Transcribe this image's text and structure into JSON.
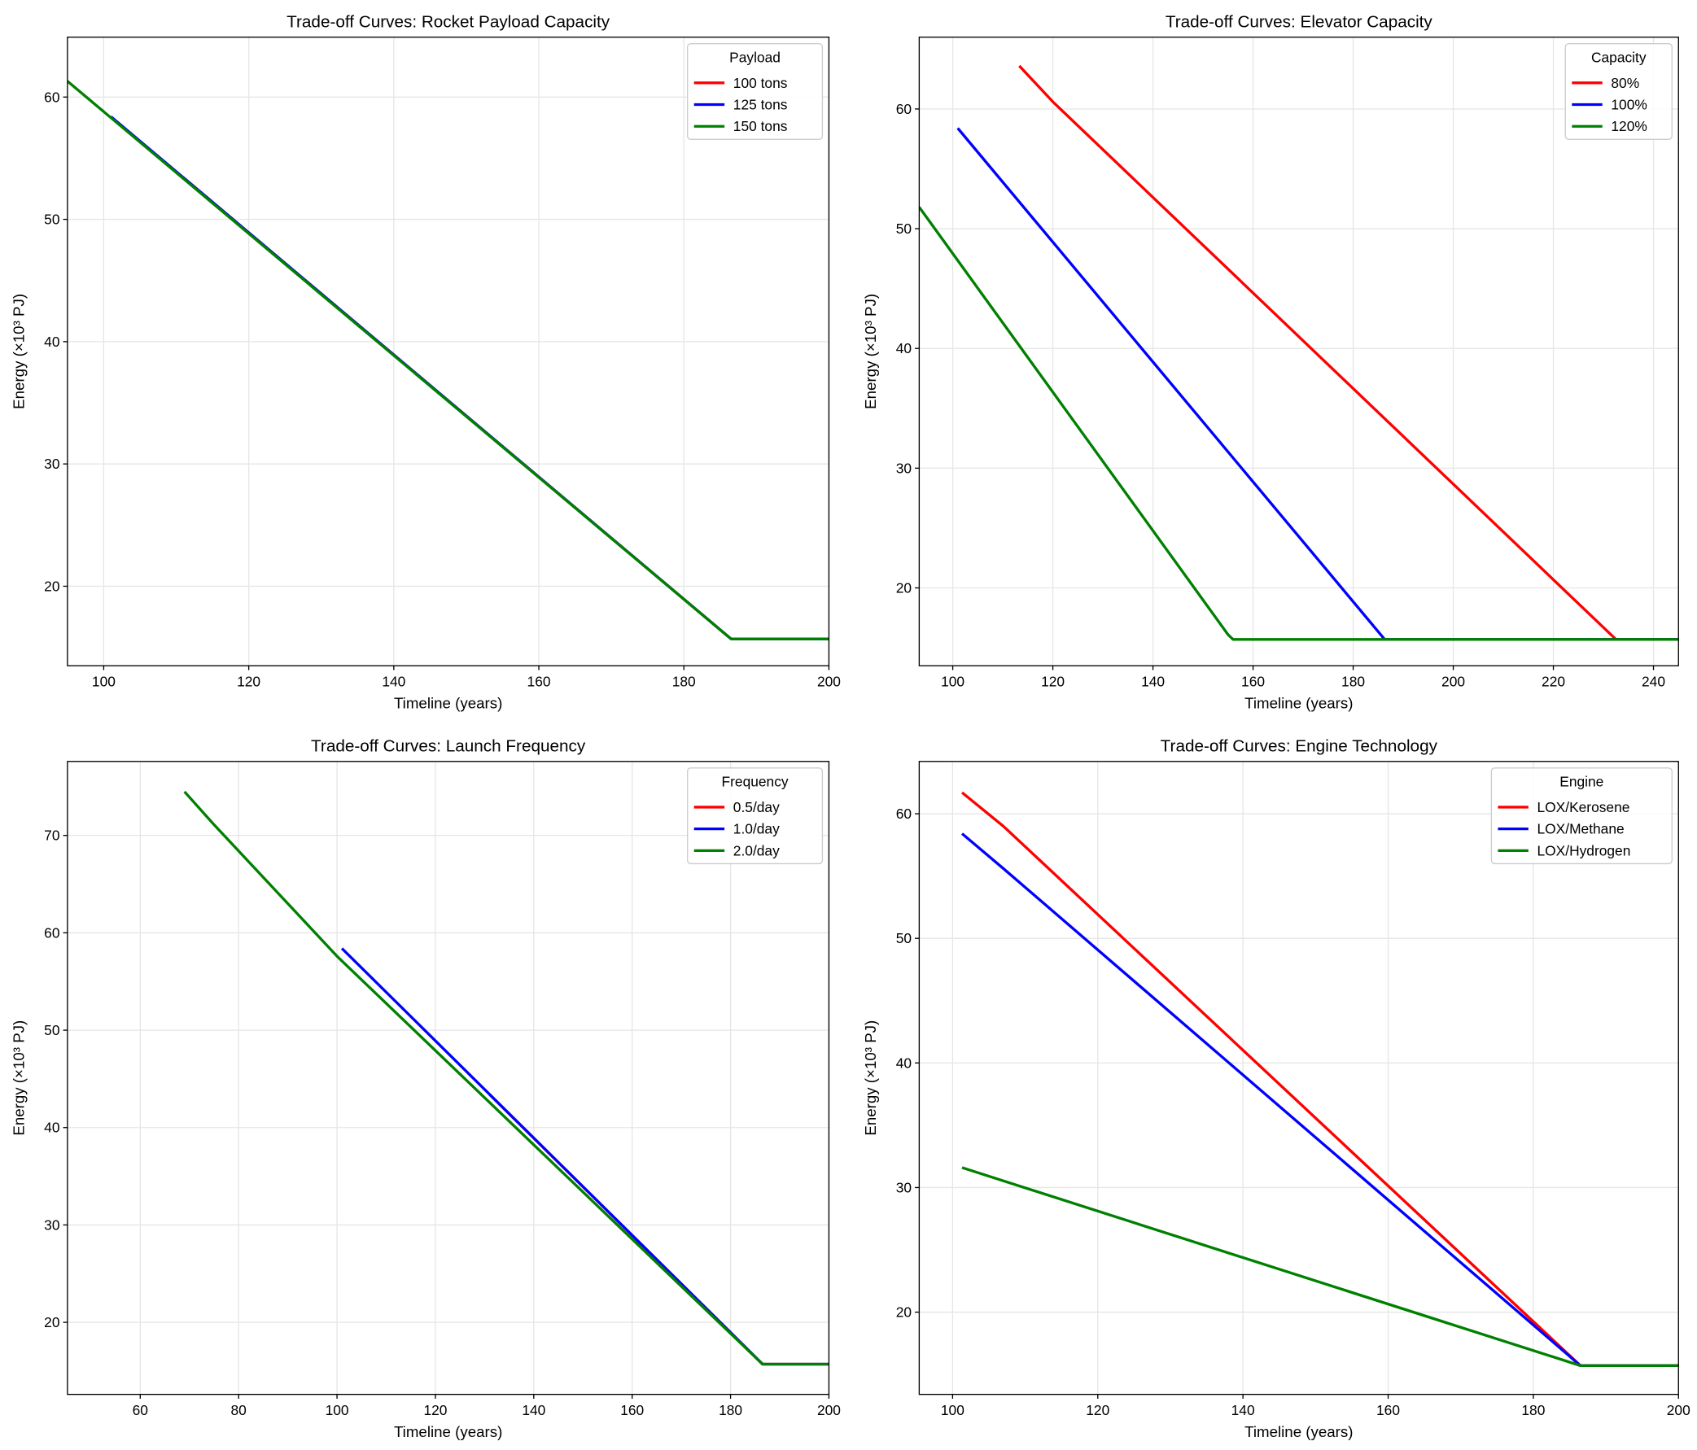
{
  "chart_data": [
    {
      "type": "line",
      "title": "Trade-off Curves: Rocket Payload Capacity",
      "xlabel": "Timeline (years)",
      "ylabel": "Energy (×10³ PJ)",
      "xlim": [
        95,
        200
      ],
      "ylim": [
        13.5,
        64.9
      ],
      "xticks": [
        100,
        120,
        140,
        160,
        180,
        200
      ],
      "yticks": [
        20,
        30,
        40,
        50,
        60
      ],
      "grid": true,
      "legend": {
        "title": "Payload",
        "placement": "top-right"
      },
      "series": [
        {
          "name": "100 tons",
          "color": "#ff0000",
          "x": [
            111,
            186.5,
            200
          ],
          "y": [
            53.4,
            15.7,
            15.7
          ]
        },
        {
          "name": "125 tons",
          "color": "#0000ff",
          "x": [
            101,
            186.5,
            200
          ],
          "y": [
            58.4,
            15.7,
            15.7
          ]
        },
        {
          "name": "150 tons",
          "color": "#008000",
          "x": [
            95,
            186.5,
            200
          ],
          "y": [
            61.3,
            15.7,
            15.7
          ]
        }
      ]
    },
    {
      "type": "line",
      "title": "Trade-off Curves: Elevator Capacity",
      "xlabel": "Timeline (years)",
      "ylabel": "Energy (×10³ PJ)",
      "xlim": [
        93.3,
        245
      ],
      "ylim": [
        13.5,
        66
      ],
      "xticks": [
        100,
        120,
        140,
        160,
        180,
        200,
        220,
        240
      ],
      "yticks": [
        20,
        30,
        40,
        50,
        60
      ],
      "grid": true,
      "legend": {
        "title": "Capacity",
        "placement": "top-right"
      },
      "series": [
        {
          "name": "80%",
          "color": "#ff0000",
          "x": [
            113.3,
            120,
            232.5,
            245
          ],
          "y": [
            63.6,
            60.6,
            15.7,
            15.7
          ]
        },
        {
          "name": "100%",
          "color": "#0000ff",
          "x": [
            101,
            186.3,
            245
          ],
          "y": [
            58.4,
            15.7,
            15.7
          ]
        },
        {
          "name": "120%",
          "color": "#008000",
          "x": [
            93.3,
            155,
            156,
            245
          ],
          "y": [
            51.8,
            16.1,
            15.7,
            15.7
          ]
        }
      ]
    },
    {
      "type": "line",
      "title": "Trade-off Curves: Launch Frequency",
      "xlabel": "Timeline (years)",
      "ylabel": "Energy (×10³ PJ)",
      "xlim": [
        45.2,
        200
      ],
      "ylim": [
        12.6,
        77.6
      ],
      "xticks": [
        60,
        80,
        100,
        120,
        140,
        160,
        180,
        200
      ],
      "yticks": [
        20,
        30,
        40,
        50,
        60,
        70
      ],
      "grid": true,
      "legend": {
        "title": "Frequency",
        "placement": "top-right"
      },
      "series": [
        {
          "name": "0.5/day",
          "color": "#ff0000",
          "x": [
            131,
            186.5,
            200
          ],
          "y": [
            43.4,
            15.7,
            15.7
          ]
        },
        {
          "name": "1.0/day",
          "color": "#0000ff",
          "x": [
            101,
            186.5,
            200
          ],
          "y": [
            58.4,
            15.7,
            15.7
          ]
        },
        {
          "name": "2.0/day",
          "color": "#008000",
          "x": [
            69,
            75,
            100,
            186.5,
            200
          ],
          "y": [
            74.5,
            71.1,
            57.6,
            15.7,
            15.7
          ]
        }
      ]
    },
    {
      "type": "line",
      "title": "Trade-off Curves: Engine Technology",
      "xlabel": "Timeline (years)",
      "ylabel": "Energy (×10³ PJ)",
      "xlim": [
        95.4,
        200
      ],
      "ylim": [
        13.4,
        64.2
      ],
      "xticks": [
        100,
        120,
        140,
        160,
        180,
        200
      ],
      "yticks": [
        20,
        30,
        40,
        50,
        60
      ],
      "grid": true,
      "legend": {
        "title": "Engine",
        "placement": "top-right"
      },
      "series": [
        {
          "name": "LOX/Kerosene",
          "color": "#ff0000",
          "x": [
            101.3,
            107,
            186.5,
            200
          ],
          "y": [
            61.7,
            59.0,
            15.7,
            15.7
          ]
        },
        {
          "name": "LOX/Methane",
          "color": "#0000ff",
          "x": [
            101.3,
            107,
            186.5,
            200
          ],
          "y": [
            58.4,
            55.6,
            15.7,
            15.7
          ]
        },
        {
          "name": "LOX/Hydrogen",
          "color": "#008000",
          "x": [
            101.3,
            186.5,
            200
          ],
          "y": [
            31.6,
            15.7,
            15.7
          ]
        }
      ]
    }
  ]
}
